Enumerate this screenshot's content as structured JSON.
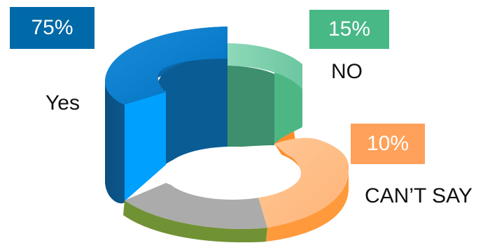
{
  "chart_data": {
    "type": "pie",
    "style": "3d-donut",
    "slices": [
      {
        "category": "Yes",
        "percent_label": "75%",
        "value": 75,
        "color": "#0077C8",
        "tag_color": "#0069A8"
      },
      {
        "category": "NO",
        "percent_label": "15%",
        "value": 15,
        "color": "#7DD0AE",
        "tag_color": "#47B886"
      },
      {
        "category": "CAN’T SAY",
        "percent_label": "10%",
        "value": 10,
        "color": "#FFBC86",
        "tag_color": "#FFA15A"
      }
    ]
  }
}
